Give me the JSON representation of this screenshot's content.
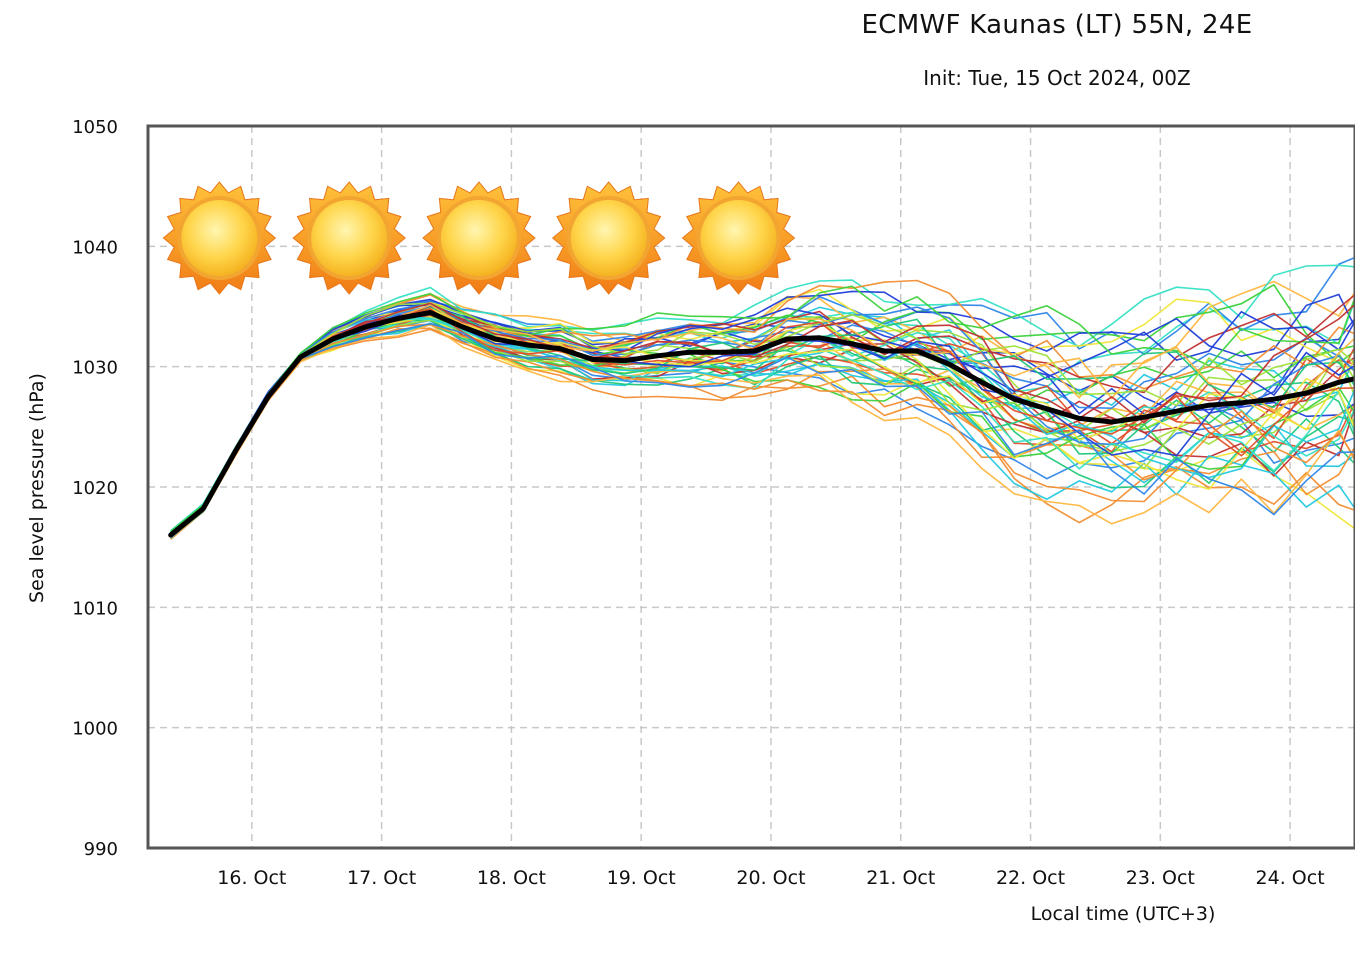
{
  "chart_data": {
    "type": "line",
    "title": "ECMWF Kaunas (LT) 55N, 24E",
    "subtitle": "Init: Tue, 15 Oct 2024, 00Z",
    "xlabel": "Local time (UTC+3)",
    "ylabel": "Sea level pressure (hPa)",
    "ylim": [
      990,
      1050
    ],
    "yticks": [
      990,
      1000,
      1010,
      1020,
      1030,
      1040,
      1050
    ],
    "xlim_days": [
      15.2,
      24.5
    ],
    "x_ticks": [
      {
        "label": "16. Oct",
        "day": 16
      },
      {
        "label": "17. Oct",
        "day": 17
      },
      {
        "label": "18. Oct",
        "day": 18
      },
      {
        "label": "19. Oct",
        "day": 19
      },
      {
        "label": "20. Oct",
        "day": 20
      },
      {
        "label": "21. Oct",
        "day": 21
      },
      {
        "label": "22. Oct",
        "day": 22
      },
      {
        "label": "23. Oct",
        "day": 23
      },
      {
        "label": "24. Oct",
        "day": 24
      }
    ],
    "grid": true,
    "weather_icons": [
      {
        "icon": "sun-icon",
        "day": 15.75
      },
      {
        "icon": "sun-icon",
        "day": 16.75
      },
      {
        "icon": "sun-icon",
        "day": 17.75
      },
      {
        "icon": "sun-icon",
        "day": 18.75
      },
      {
        "icon": "sun-icon",
        "day": 19.75
      }
    ],
    "x_days": [
      15.375,
      15.625,
      15.875,
      16.125,
      16.375,
      16.625,
      16.875,
      17.125,
      17.375,
      17.625,
      17.875,
      18.125,
      18.375,
      18.625,
      18.875,
      19.125,
      19.375,
      19.625,
      19.875,
      20.125,
      20.375,
      20.625,
      20.875,
      21.125,
      21.375,
      21.625,
      21.875,
      22.125,
      22.375,
      22.625,
      22.875,
      23.125,
      23.375,
      23.625,
      23.875,
      24.125,
      24.375,
      24.5
    ],
    "main_series": {
      "color": "#000000",
      "values": [
        1016.0,
        1018.2,
        1023.0,
        1027.5,
        1030.8,
        1032.3,
        1033.3,
        1034.0,
        1034.5,
        1033.3,
        1032.3,
        1031.8,
        1031.5,
        1030.6,
        1030.5,
        1030.9,
        1031.2,
        1031.2,
        1031.3,
        1032.3,
        1032.4,
        1031.9,
        1031.3,
        1031.3,
        1030.2,
        1028.7,
        1027.3,
        1026.5,
        1025.7,
        1025.4,
        1025.8,
        1026.3,
        1026.8,
        1027.0,
        1027.3,
        1027.8,
        1028.7,
        1029.0
      ]
    },
    "ensemble_colors": [
      "#1f3fd8",
      "#2f86e8",
      "#23c8e0",
      "#34e0c4",
      "#1fc87a",
      "#3cd23c",
      "#9ee03a",
      "#f0e63a",
      "#ffb640",
      "#f28d30",
      "#e0502a",
      "#c03030"
    ]
  }
}
